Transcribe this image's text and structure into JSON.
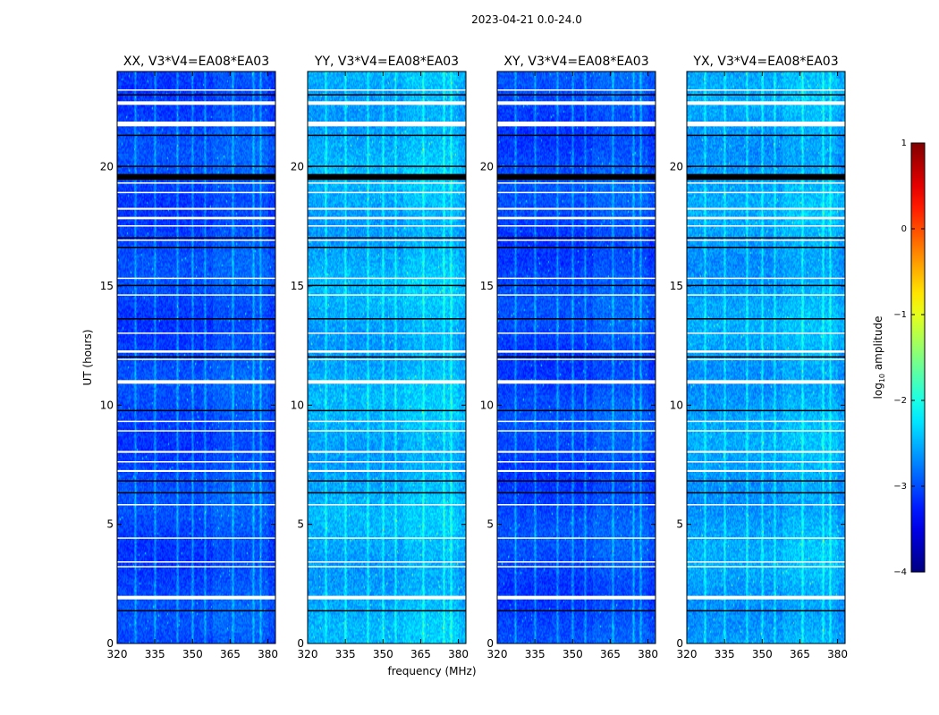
{
  "figure": {
    "suptitle": "2023-04-21 0.0-24.0",
    "xlabel": "frequency (MHz)",
    "ylabel": "UT (hours)"
  },
  "chart_data": {
    "type": "heatmap",
    "x_range_mhz": [
      320,
      383
    ],
    "y_range_hours": [
      0,
      24
    ],
    "x_ticks": [
      320,
      335,
      350,
      365,
      380
    ],
    "y_ticks": [
      0,
      5,
      10,
      15,
      20
    ],
    "panels": [
      {
        "title": "XX, V3*V4=EA08*EA03",
        "base_level": -3.05,
        "noise": 0.22
      },
      {
        "title": "YY, V3*V4=EA08*EA03",
        "base_level": -2.55,
        "noise": 0.25
      },
      {
        "title": "XY, V3*V4=EA08*EA03",
        "base_level": -3.05,
        "noise": 0.22
      },
      {
        "title": "YX, V3*V4=EA08*EA03",
        "base_level": -2.6,
        "noise": 0.25
      }
    ],
    "rfi_channels_mhz": [
      327,
      335,
      344,
      350,
      355,
      366,
      374,
      377
    ],
    "rfi_level_boost": 0.6,
    "flagged_rows_hours": [
      [
        1.85,
        2.0
      ],
      [
        3.2,
        3.25
      ],
      [
        3.4,
        3.45
      ],
      [
        4.4,
        4.45
      ],
      [
        5.8,
        5.85
      ],
      [
        7.2,
        7.28
      ],
      [
        7.6,
        7.65
      ],
      [
        8.0,
        8.08
      ],
      [
        8.9,
        8.95
      ],
      [
        9.3,
        9.35
      ],
      [
        10.9,
        11.05
      ],
      [
        11.9,
        11.95
      ],
      [
        12.2,
        12.3
      ],
      [
        13.0,
        13.05
      ],
      [
        14.6,
        14.65
      ],
      [
        15.3,
        15.35
      ],
      [
        16.9,
        16.95
      ],
      [
        17.5,
        17.55
      ],
      [
        17.8,
        17.9
      ],
      [
        18.2,
        18.28
      ],
      [
        18.9,
        18.95
      ],
      [
        19.3,
        19.35
      ],
      [
        21.7,
        21.9
      ],
      [
        22.6,
        22.75
      ],
      [
        23.2,
        23.25
      ]
    ],
    "dark_rows_hours": [
      [
        1.35,
        1.4
      ],
      [
        6.3,
        6.35
      ],
      [
        6.8,
        6.85
      ],
      [
        9.75,
        9.8
      ],
      [
        12.0,
        12.05
      ],
      [
        13.6,
        13.65
      ],
      [
        15.0,
        15.05
      ],
      [
        16.6,
        16.65
      ],
      [
        17.0,
        17.05
      ],
      [
        19.45,
        19.7
      ],
      [
        20.0,
        20.05
      ],
      [
        21.3,
        21.35
      ],
      [
        23.0,
        23.05
      ]
    ],
    "colorbar": {
      "label": "log10 amplitude",
      "label_main": "log",
      "label_sub": "10",
      "label_rest": " amplitude",
      "ticks": [
        1,
        0,
        -1,
        -2,
        -3,
        -4
      ],
      "range": [
        -4,
        1
      ],
      "colormap": "jet"
    }
  }
}
